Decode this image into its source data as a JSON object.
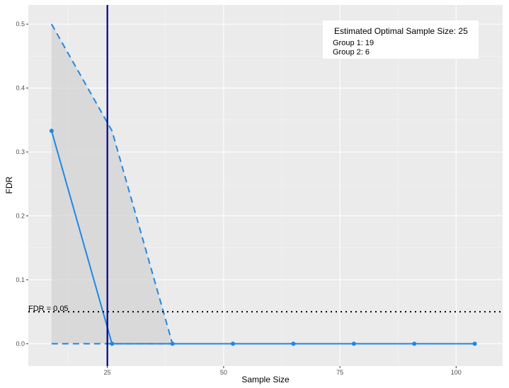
{
  "chart_data": {
    "type": "line",
    "title": "",
    "xlabel": "Sample Size",
    "ylabel": "FDR",
    "xlim": [
      8,
      110
    ],
    "ylim": [
      -0.035,
      0.53
    ],
    "x_ticks": [
      25,
      50,
      75,
      100
    ],
    "y_ticks": [
      0.0,
      0.1,
      0.2,
      0.3,
      0.4,
      0.5
    ],
    "y_tick_labels": [
      "0.0",
      "0.1",
      "0.2",
      "0.3",
      "0.4",
      "0.5"
    ],
    "x_tick_labels": [
      "25",
      "50",
      "75",
      "100"
    ],
    "grid": true,
    "series": [
      {
        "name": "",
        "style": "solid",
        "color": "#1f88e5",
        "markers": true,
        "x": [
          13,
          26,
          39,
          52,
          65,
          78,
          91,
          104
        ],
        "y": [
          0.333,
          0.0,
          0.0,
          0.0,
          0.0,
          0.0,
          0.0,
          0.0
        ]
      }
    ],
    "band": {
      "color": "#d3d3d3",
      "edge_color": "#1f88e5",
      "upper": {
        "x": [
          13,
          26,
          39
        ],
        "y": [
          0.5,
          0.333,
          0.0
        ]
      },
      "lower": {
        "x": [
          13,
          26,
          39
        ],
        "y": [
          0.0,
          0.0,
          0.0
        ]
      }
    },
    "vline": {
      "x": 25,
      "color": "#00008b"
    },
    "hline": {
      "y": 0.05,
      "style": "dotted",
      "color": "#000000",
      "label": "FDR =  0.05"
    },
    "legend_box": {
      "position": "top-right",
      "line1": "Estimated Optimal Sample Size:  25",
      "line2": "Group 1:  19",
      "line3": "Group 2:  6"
    }
  }
}
